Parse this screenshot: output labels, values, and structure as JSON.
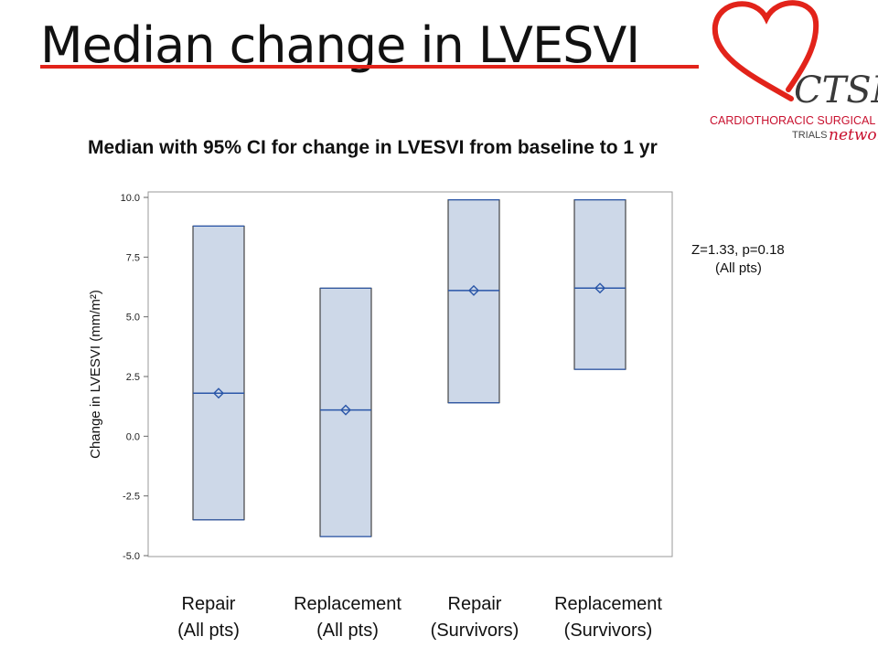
{
  "slide": {
    "title": "Median change in LVESVI"
  },
  "logo": {
    "brand": "CTSN",
    "line1": "CARDIOTHORACIC SURGICAL",
    "line2_a": "TRIALS",
    "line2_b": "network",
    "accent_color": "#e2231a"
  },
  "chart_data": {
    "type": "box",
    "title": "Median with 95% CI for change in LVESVI from baseline to 1 yr",
    "ylabel": "Change in LVESVI (mm/m²)",
    "xlabel": "",
    "ylim": [
      -5.0,
      10.0
    ],
    "yticks": [
      "10.0",
      "7.5",
      "5.0",
      "2.5",
      "0.0",
      "-2.5",
      "-5.0"
    ],
    "grid": false,
    "box_fill": "#cdd8e8",
    "median_color": "#2a56a8",
    "categories": [
      {
        "line1": "Repair",
        "line2": "(All pts)"
      },
      {
        "line1": "Replacement",
        "line2": "(All pts)"
      },
      {
        "line1": "Repair",
        "line2": "(Survivors)"
      },
      {
        "line1": "Replacement",
        "line2": "(Survivors)"
      }
    ],
    "boxes": [
      {
        "median": 1.8,
        "lower": -3.5,
        "upper": 8.8
      },
      {
        "median": 1.1,
        "lower": -4.2,
        "upper": 6.2
      },
      {
        "median": 6.1,
        "lower": 1.4,
        "upper": 9.9
      },
      {
        "median": 6.2,
        "lower": 2.8,
        "upper": 9.9
      }
    ],
    "annotation": {
      "line1": "Z=1.33, p=0.18",
      "line2": "(All pts)"
    }
  }
}
